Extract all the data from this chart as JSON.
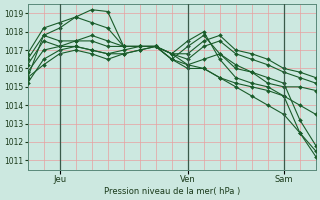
{
  "background_color": "#cce8e0",
  "plot_bg_color": "#cce8e0",
  "grid_color_v": "#e8a0a0",
  "grid_color_h": "#b8d8d0",
  "line_color": "#1a5c2a",
  "marker_color": "#1a5c2a",
  "xlabel": "Pression niveau de la mer( hPa )",
  "ylim": [
    1010.5,
    1019.5
  ],
  "yticks": [
    1011,
    1012,
    1013,
    1014,
    1015,
    1016,
    1017,
    1018,
    1019
  ],
  "xlim_start": 0,
  "xlim_end": 54,
  "series": [
    {
      "x": [
        0,
        3,
        6,
        9,
        12,
        15,
        18,
        21,
        24,
        27,
        30,
        33,
        36,
        39,
        42,
        45,
        48,
        51,
        54
      ],
      "y": [
        1015.5,
        1017.8,
        1018.2,
        1018.8,
        1019.2,
        1019.1,
        1017.2,
        1017.2,
        1017.2,
        1016.8,
        1017.5,
        1018.0,
        1016.5,
        1015.5,
        1015.2,
        1015.0,
        1014.5,
        1012.5,
        1011.2
      ]
    },
    {
      "x": [
        0,
        3,
        6,
        9,
        12,
        15,
        18,
        21,
        24,
        27,
        30,
        33,
        36,
        39,
        42,
        45,
        48,
        51,
        54
      ],
      "y": [
        1016.8,
        1018.2,
        1018.5,
        1018.8,
        1018.5,
        1018.2,
        1017.2,
        1017.2,
        1017.2,
        1016.5,
        1017.2,
        1017.8,
        1016.8,
        1016.0,
        1015.8,
        1015.5,
        1015.2,
        1013.2,
        1011.8
      ]
    },
    {
      "x": [
        0,
        3,
        6,
        9,
        12,
        15,
        18,
        21,
        24,
        27,
        30,
        33,
        36,
        39,
        42,
        45,
        48,
        51,
        54
      ],
      "y": [
        1016.2,
        1017.5,
        1017.2,
        1017.5,
        1017.5,
        1017.2,
        1017.2,
        1017.2,
        1017.2,
        1016.8,
        1016.5,
        1017.2,
        1017.5,
        1016.8,
        1016.5,
        1016.2,
        1015.8,
        1015.5,
        1015.2
      ]
    },
    {
      "x": [
        0,
        3,
        6,
        9,
        12,
        15,
        18,
        21,
        24,
        27,
        30,
        33,
        36,
        39,
        42,
        45,
        48,
        51,
        54
      ],
      "y": [
        1016.5,
        1017.8,
        1017.5,
        1017.5,
        1017.8,
        1017.5,
        1017.2,
        1017.2,
        1017.2,
        1016.8,
        1016.8,
        1017.5,
        1017.8,
        1017.0,
        1016.8,
        1016.5,
        1016.0,
        1015.8,
        1015.5
      ]
    },
    {
      "x": [
        0,
        3,
        6,
        9,
        12,
        15,
        18,
        21,
        24,
        27,
        30,
        33,
        36,
        39,
        42,
        45,
        48,
        51,
        54
      ],
      "y": [
        1015.2,
        1016.5,
        1017.0,
        1017.2,
        1017.0,
        1016.8,
        1017.0,
        1017.2,
        1017.2,
        1016.5,
        1016.2,
        1016.5,
        1016.8,
        1016.2,
        1015.8,
        1015.2,
        1015.0,
        1015.0,
        1014.8
      ]
    },
    {
      "x": [
        0,
        3,
        6,
        9,
        12,
        15,
        18,
        21,
        24,
        27,
        30,
        33,
        36,
        39,
        42,
        45,
        48,
        51,
        54
      ],
      "y": [
        1015.5,
        1016.2,
        1016.8,
        1017.0,
        1016.8,
        1016.5,
        1016.8,
        1017.0,
        1017.2,
        1016.5,
        1016.0,
        1016.0,
        1015.5,
        1015.2,
        1015.0,
        1014.8,
        1014.5,
        1014.0,
        1013.5
      ]
    },
    {
      "x": [
        0,
        3,
        6,
        9,
        12,
        15,
        18,
        21,
        24,
        27,
        30,
        33,
        36,
        39,
        42,
        45,
        48,
        51,
        54
      ],
      "y": [
        1015.8,
        1017.0,
        1017.2,
        1017.2,
        1017.0,
        1016.8,
        1016.8,
        1017.0,
        1017.2,
        1016.8,
        1016.2,
        1016.0,
        1015.5,
        1015.0,
        1014.5,
        1014.0,
        1013.5,
        1012.5,
        1011.5
      ]
    }
  ],
  "vlines_x": [
    6,
    30,
    48
  ],
  "xtick_labels": [
    "Jeu",
    "Ven",
    "Sam"
  ],
  "xtick_positions": [
    6,
    30,
    48
  ]
}
